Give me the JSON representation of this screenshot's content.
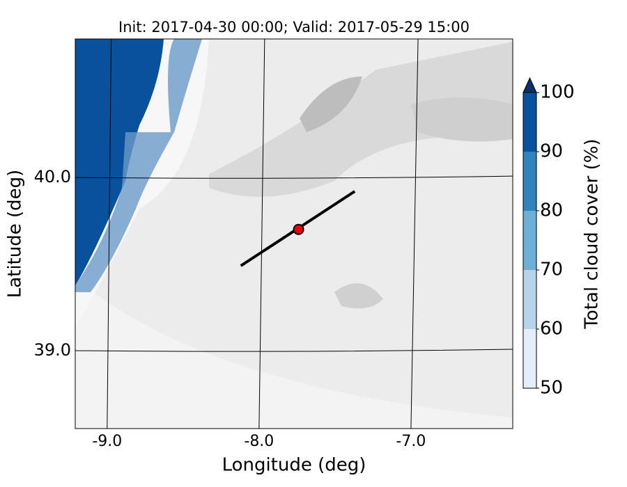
{
  "title": "Init: 2017-04-30 00:00; Valid: 2017-05-29 15:00",
  "x_axis": {
    "label": "Longitude (deg)",
    "lim": [
      -9.21,
      -6.33
    ],
    "ticks": [
      {
        "value": -9,
        "label": "-9.0"
      },
      {
        "value": -8,
        "label": "-8.0"
      },
      {
        "value": -7,
        "label": "-7.0"
      }
    ]
  },
  "y_axis": {
    "label": "Latitude (deg)",
    "lim": [
      38.55,
      40.8
    ],
    "ticks": [
      {
        "value": 39,
        "label": "39.0"
      },
      {
        "value": 40,
        "label": "40.0"
      }
    ]
  },
  "colorbar": {
    "label": "Total cloud cover (%)",
    "lim": [
      50,
      100
    ],
    "ticks": [
      50,
      60,
      70,
      80,
      90,
      100
    ],
    "colors": [
      "#e3eef8",
      "#b6d3ea",
      "#6baed6",
      "#3182bd",
      "#08519c"
    ],
    "extend_color": "#08306b"
  },
  "transect": {
    "lon": [
      -8.12,
      -7.37
    ],
    "lat": [
      39.49,
      39.92
    ],
    "color": "#000000"
  },
  "site": {
    "lon": -7.74,
    "lat": 39.7,
    "color": "#e8000b"
  }
}
